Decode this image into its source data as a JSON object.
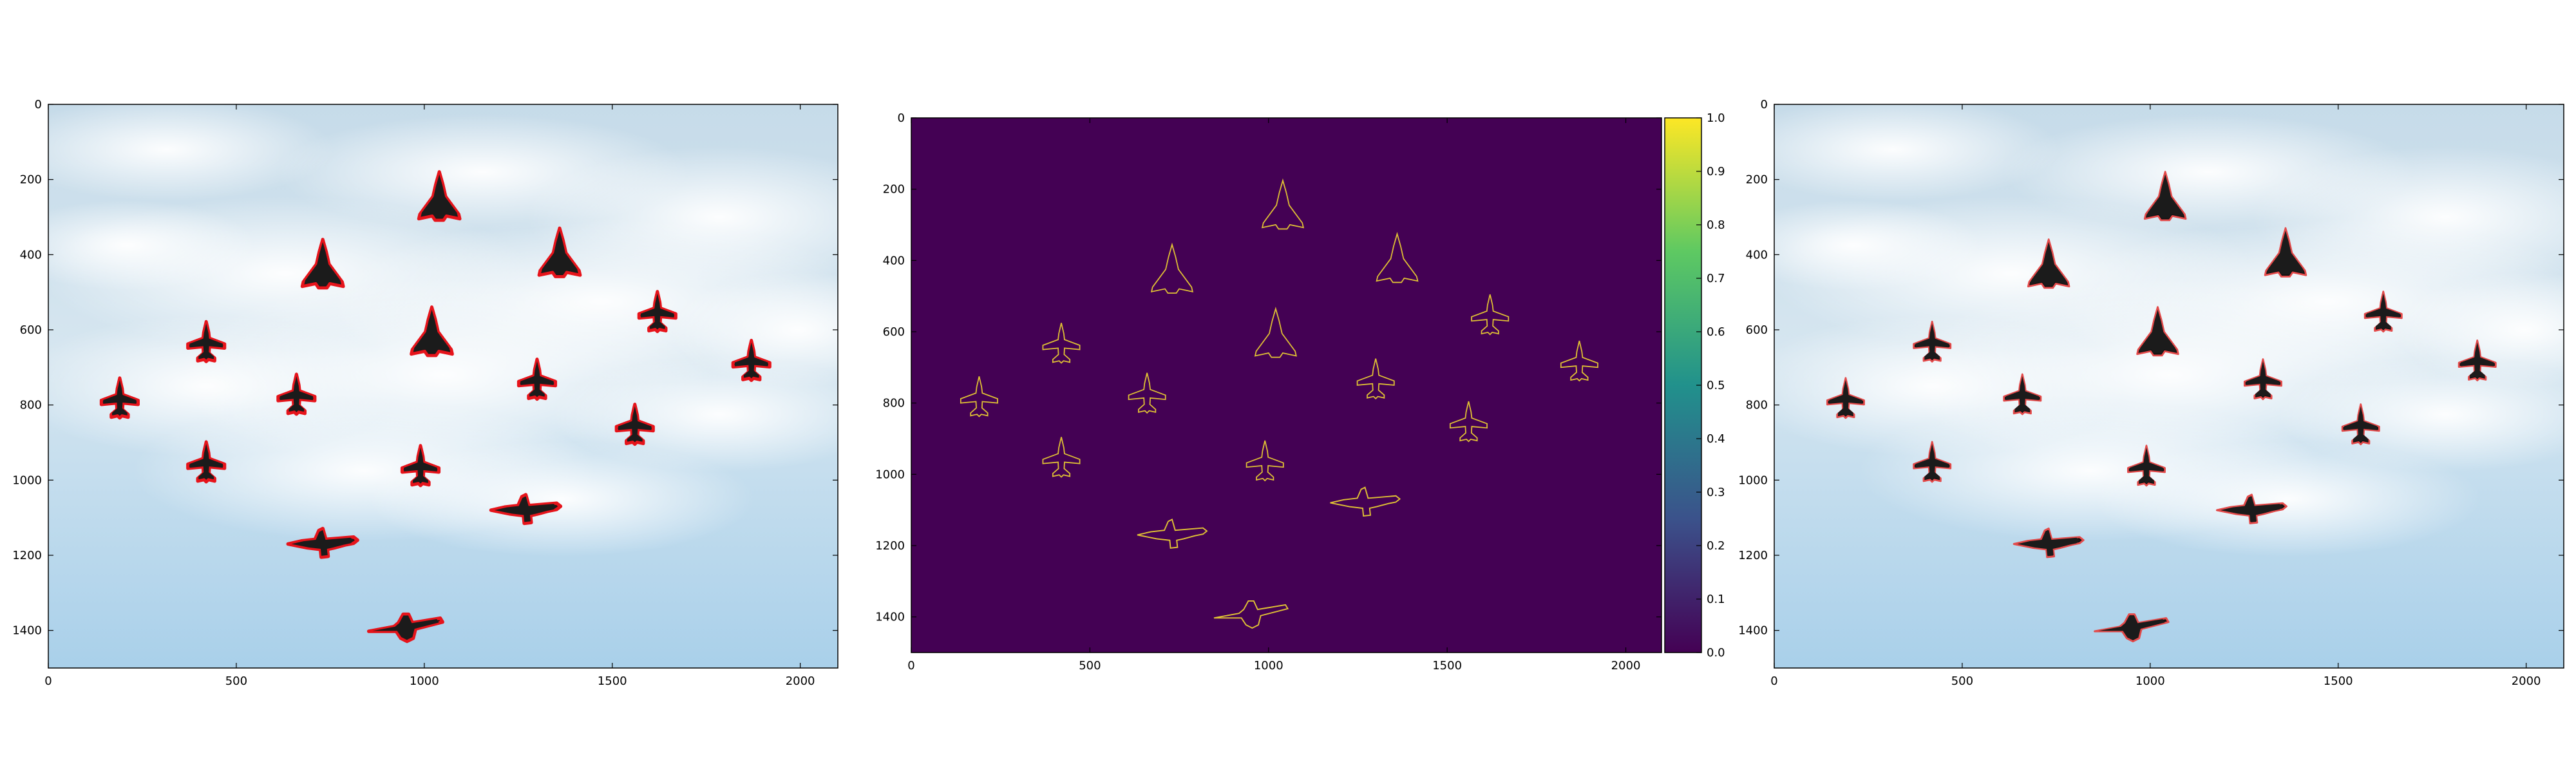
{
  "panels": [
    {
      "id": "original",
      "x_ticks": [
        "0",
        "500",
        "1000",
        "1500",
        "2000"
      ],
      "y_ticks": [
        "0",
        "200",
        "400",
        "600",
        "800",
        "1000",
        "1200",
        "1400"
      ],
      "contour_color": "#e6141b"
    },
    {
      "id": "edges",
      "x_ticks": [
        "0",
        "500",
        "1000",
        "1500",
        "2000"
      ],
      "y_ticks": [
        "0",
        "200",
        "400",
        "600",
        "800",
        "1000",
        "1200",
        "1400"
      ],
      "background_color": "#440154",
      "edge_color": "#e0c234",
      "colorbar": {
        "ticks": [
          "0.0",
          "0.1",
          "0.2",
          "0.3",
          "0.4",
          "0.5",
          "0.6",
          "0.7",
          "0.8",
          "0.9",
          "1.0"
        ],
        "colormap": [
          "#440154",
          "#3b528b",
          "#21918c",
          "#5ec962",
          "#fde725"
        ]
      }
    },
    {
      "id": "overlay",
      "x_ticks": [
        "0",
        "500",
        "1000",
        "1500",
        "2000"
      ],
      "y_ticks": [
        "0",
        "200",
        "400",
        "600",
        "800",
        "1000",
        "1200",
        "1400"
      ],
      "contour_color": "#e34a4a"
    }
  ],
  "aircraft": [
    {
      "type": "delta",
      "cx": 1040,
      "cy": 250
    },
    {
      "type": "delta",
      "cx": 730,
      "cy": 430
    },
    {
      "type": "delta",
      "cx": 1360,
      "cy": 400
    },
    {
      "type": "delta",
      "cx": 1020,
      "cy": 610
    },
    {
      "type": "fighter",
      "cx": 420,
      "cy": 630
    },
    {
      "type": "fighter",
      "cx": 1620,
      "cy": 550
    },
    {
      "type": "fighter",
      "cx": 1870,
      "cy": 680
    },
    {
      "type": "fighter",
      "cx": 190,
      "cy": 780
    },
    {
      "type": "fighter",
      "cx": 660,
      "cy": 770
    },
    {
      "type": "fighter",
      "cx": 1300,
      "cy": 730
    },
    {
      "type": "fighter",
      "cx": 1560,
      "cy": 850
    },
    {
      "type": "fighter",
      "cx": 420,
      "cy": 950
    },
    {
      "type": "fighter",
      "cx": 990,
      "cy": 960
    },
    {
      "type": "jet",
      "cx": 1270,
      "cy": 1080
    },
    {
      "type": "jet",
      "cx": 730,
      "cy": 1170
    },
    {
      "type": "awacs",
      "cx": 950,
      "cy": 1390
    }
  ]
}
